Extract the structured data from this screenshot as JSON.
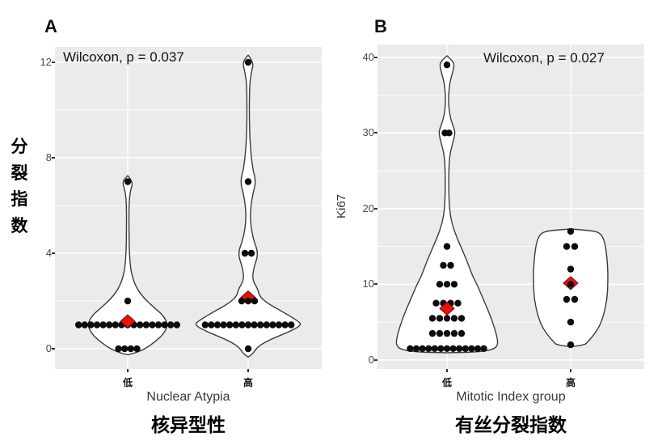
{
  "colors": {
    "panel_bg": "#ebebeb",
    "grid": "#ffffff",
    "violin_stroke": "#3b3b3b",
    "violin_fill": "#ffffff",
    "dot": "#0d0d0d",
    "mean_diamond": "#e8130d",
    "mean_diamond_stroke": "#7a0000"
  },
  "chart_data": [
    {
      "type": "violin",
      "subtype": "violin + dotplot + red mean diamond",
      "letter": "A",
      "annotation": "Wilcoxon, p = 0.037",
      "ylabel": "分裂指数",
      "xlabel": "Nuclear Atypia",
      "title": "核异型性",
      "categories": [
        "低",
        "高"
      ],
      "ylim": [
        -0.9,
        12.6
      ],
      "yticks": [
        0,
        4,
        8,
        12
      ],
      "grid": "white major+minor on gray panel",
      "legend": "none",
      "groups": [
        {
          "category": "低",
          "mean": 1.15,
          "mean_on_top": true,
          "rows": [
            {
              "value": 7,
              "count": 1
            },
            {
              "value": 2,
              "count": 1
            },
            {
              "value": 1,
              "count": 17,
              "spacing": 7.6
            },
            {
              "value": 0,
              "count": 4,
              "spacing": 7.6
            }
          ],
          "violin_profile": [
            [
              7.25,
              0
            ],
            [
              7.0,
              7
            ],
            [
              6.6,
              3
            ],
            [
              6.0,
              1.5
            ],
            [
              5.0,
              1.5
            ],
            [
              4.0,
              2
            ],
            [
              3.2,
              4
            ],
            [
              2.6,
              10
            ],
            [
              2.2,
              18
            ],
            [
              1.8,
              30
            ],
            [
              1.4,
              44
            ],
            [
              1.0,
              50
            ],
            [
              0.6,
              44
            ],
            [
              0.3,
              34
            ],
            [
              0.05,
              24
            ],
            [
              -0.15,
              12
            ],
            [
              -0.25,
              0
            ]
          ]
        },
        {
          "category": "高",
          "mean": 2.15,
          "mean_on_top": false,
          "rows": [
            {
              "value": 12,
              "count": 1
            },
            {
              "value": 7,
              "count": 1
            },
            {
              "value": 4,
              "count": 2,
              "spacing": 8
            },
            {
              "value": 2,
              "count": 3,
              "spacing": 8
            },
            {
              "value": 1,
              "count": 15,
              "spacing": 7.6
            },
            {
              "value": 0,
              "count": 1
            }
          ],
          "violin_profile": [
            [
              12.3,
              0
            ],
            [
              12.0,
              7
            ],
            [
              11.6,
              4
            ],
            [
              11.0,
              1.5
            ],
            [
              9.0,
              1.5
            ],
            [
              7.6,
              5
            ],
            [
              7.0,
              10
            ],
            [
              6.4,
              5
            ],
            [
              5.5,
              2
            ],
            [
              4.6,
              6
            ],
            [
              4.0,
              13
            ],
            [
              3.4,
              7
            ],
            [
              2.9,
              5
            ],
            [
              2.5,
              12
            ],
            [
              2.2,
              14
            ],
            [
              1.9,
              24
            ],
            [
              1.6,
              40
            ],
            [
              1.2,
              60
            ],
            [
              1.0,
              67
            ],
            [
              0.7,
              50
            ],
            [
              0.4,
              28
            ],
            [
              0.1,
              12
            ],
            [
              -0.2,
              6
            ],
            [
              -0.35,
              0
            ]
          ]
        }
      ]
    },
    {
      "type": "violin",
      "subtype": "violin + dotplot + red mean diamond",
      "letter": "B",
      "annotation": "Wilcoxon, p = 0.027",
      "ylabel": "Ki67",
      "xlabel": "Mitotic Index group",
      "title": "有丝分裂指数",
      "categories": [
        "低",
        "高"
      ],
      "ylim": [
        -1,
        42
      ],
      "yticks": [
        0,
        10,
        20,
        30,
        40
      ],
      "grid": "white major+minor on gray panel",
      "legend": "none",
      "groups": [
        {
          "category": "低",
          "mean": 6.8,
          "mean_on_top": true,
          "rows": [
            {
              "value": 39,
              "count": 1
            },
            {
              "value": 30,
              "count": 2,
              "spacing": 5
            },
            {
              "value": 15,
              "count": 1
            },
            {
              "value": 12.5,
              "count": 2,
              "spacing": 9
            },
            {
              "value": 10,
              "count": 3,
              "spacing": 9
            },
            {
              "value": 7.5,
              "count": 4,
              "spacing": 9
            },
            {
              "value": 5.5,
              "count": 5,
              "spacing": 9
            },
            {
              "value": 3.5,
              "count": 5,
              "spacing": 9
            },
            {
              "value": 1.5,
              "count": 13,
              "spacing": 7.6
            }
          ],
          "violin_profile": [
            [
              40.2,
              0
            ],
            [
              39.5,
              7
            ],
            [
              39,
              9
            ],
            [
              38,
              7
            ],
            [
              36.5,
              3
            ],
            [
              34,
              1.5
            ],
            [
              32,
              4
            ],
            [
              30.5,
              9
            ],
            [
              30,
              10
            ],
            [
              29,
              8
            ],
            [
              27,
              3
            ],
            [
              24,
              2
            ],
            [
              21,
              2.5
            ],
            [
              19,
              4
            ],
            [
              17,
              9
            ],
            [
              15,
              17
            ],
            [
              13,
              25
            ],
            [
              11,
              32
            ],
            [
              10,
              37
            ],
            [
              8,
              45
            ],
            [
              6,
              53
            ],
            [
              4.5,
              58
            ],
            [
              3,
              62
            ],
            [
              2,
              63
            ],
            [
              1.4,
              58
            ],
            [
              1.05,
              40
            ],
            [
              0.95,
              0
            ]
          ]
        },
        {
          "category": "高",
          "mean": 10.15,
          "mean_on_top": false,
          "rows": [
            {
              "value": 17,
              "count": 1
            },
            {
              "value": 15,
              "count": 2,
              "spacing": 10
            },
            {
              "value": 12,
              "count": 1
            },
            {
              "value": 10,
              "count": 1
            },
            {
              "value": 8,
              "count": 2,
              "spacing": 10
            },
            {
              "value": 5,
              "count": 1
            },
            {
              "value": 2,
              "count": 1
            }
          ],
          "violin_profile": [
            [
              17.3,
              0
            ],
            [
              17.1,
              26
            ],
            [
              16.8,
              36
            ],
            [
              16,
              41
            ],
            [
              14.5,
              44
            ],
            [
              12,
              46
            ],
            [
              10,
              46
            ],
            [
              8,
              45
            ],
            [
              6,
              41
            ],
            [
              4.5,
              36
            ],
            [
              3.2,
              28
            ],
            [
              2.4,
              21
            ],
            [
              2.0,
              18
            ],
            [
              1.75,
              0
            ]
          ]
        }
      ]
    }
  ]
}
